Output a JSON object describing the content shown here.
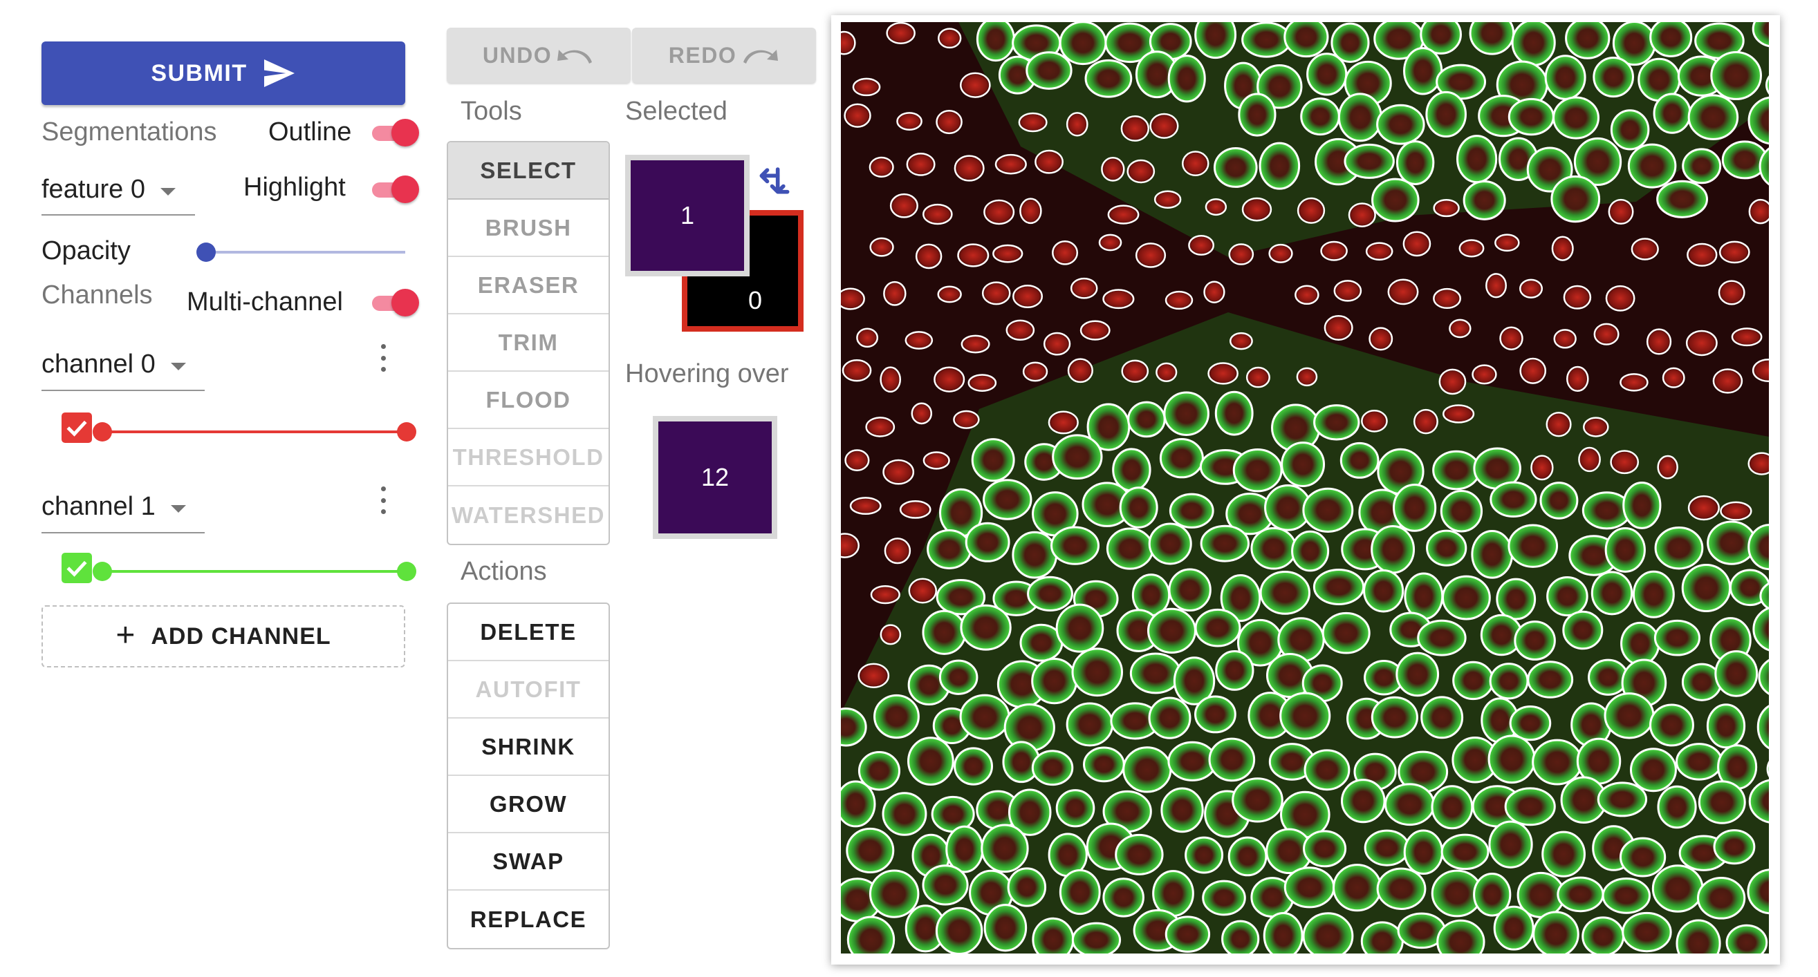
{
  "submit": {
    "label": "SUBMIT"
  },
  "segmentations": {
    "heading": "Segmentations",
    "outline_label": "Outline",
    "outline_on": true,
    "feature_select": "feature 0",
    "highlight_label": "Highlight",
    "highlight_on": true,
    "opacity_label": "Opacity",
    "opacity_value": 0
  },
  "channels": {
    "heading": "Channels",
    "multichannel_label": "Multi-channel",
    "multichannel_on": true,
    "items": [
      {
        "name": "channel 0",
        "color": "#e53935",
        "checked": true,
        "range": [
          0,
          1
        ]
      },
      {
        "name": "channel 1",
        "color": "#5fe23c",
        "checked": true,
        "range": [
          0,
          1
        ]
      }
    ],
    "add_label": "ADD CHANNEL"
  },
  "history": {
    "undo_label": "UNDO",
    "redo_label": "REDO"
  },
  "tools": {
    "heading": "Tools",
    "items": [
      {
        "label": "SELECT",
        "state": "selected"
      },
      {
        "label": "BRUSH",
        "state": "enabled"
      },
      {
        "label": "ERASER",
        "state": "enabled"
      },
      {
        "label": "TRIM",
        "state": "enabled"
      },
      {
        "label": "FLOOD",
        "state": "enabled"
      },
      {
        "label": "THRESHOLD",
        "state": "disabled"
      },
      {
        "label": "WATERSHED",
        "state": "disabled"
      }
    ]
  },
  "actions": {
    "heading": "Actions",
    "items": [
      {
        "label": "DELETE",
        "state": "enabled"
      },
      {
        "label": "AUTOFIT",
        "state": "disabled"
      },
      {
        "label": "SHRINK",
        "state": "enabled"
      },
      {
        "label": "GROW",
        "state": "enabled"
      },
      {
        "label": "SWAP",
        "state": "enabled"
      },
      {
        "label": "REPLACE",
        "state": "enabled"
      }
    ]
  },
  "selected": {
    "heading": "Selected",
    "foreground": {
      "value": "1",
      "color": "#3b0a57"
    },
    "background": {
      "value": "0",
      "color": "#000000",
      "border": "#d42d1f"
    }
  },
  "hovering": {
    "heading": "Hovering over",
    "value": "12",
    "color": "#3b0a57"
  },
  "colors": {
    "accent": "#3f51b5",
    "toggle": "#e8334f",
    "cell_outline": "#ffffff",
    "membrane": "#3fcf3a",
    "nucleus": "#c0251c"
  }
}
